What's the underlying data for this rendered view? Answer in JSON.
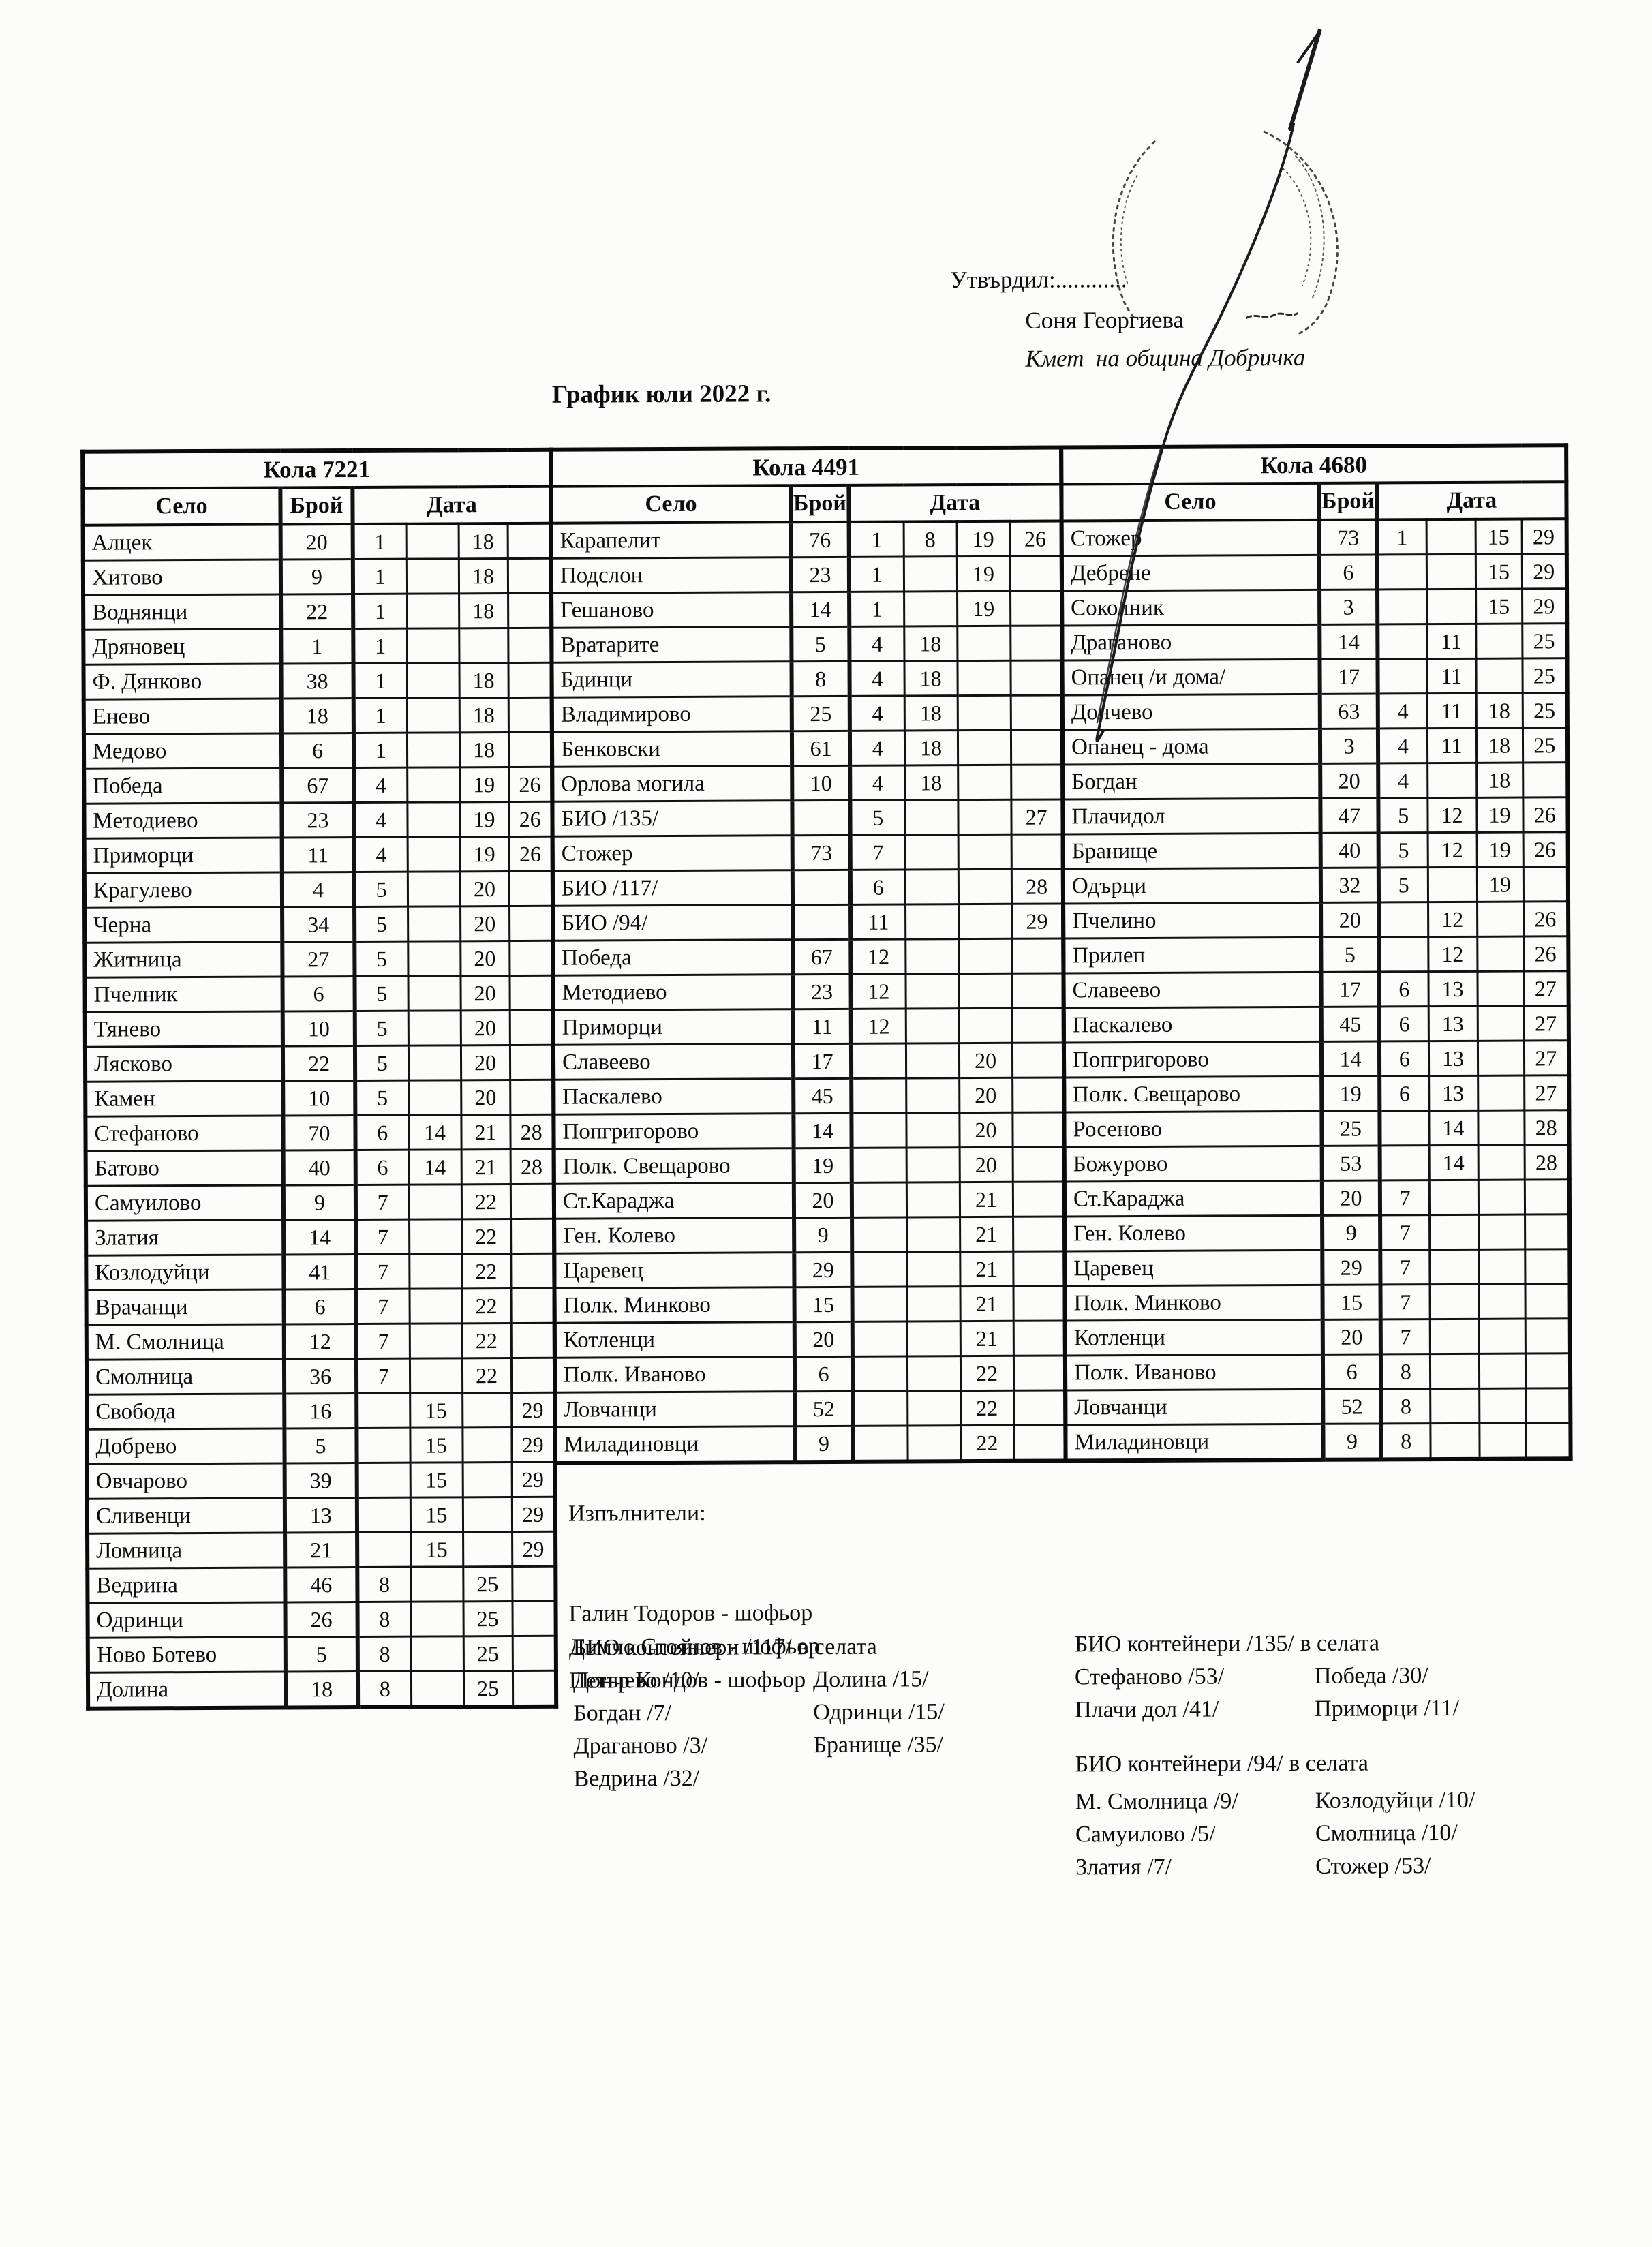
{
  "page": {
    "approve_label": "Утвърдил:............",
    "approver_name": "Соня Георгиева",
    "approver_title": "Кмет  на община Добричка",
    "title": "График юли 2022 г."
  },
  "tables": [
    {
      "car": "Кола 7221",
      "columns": {
        "village": "Село",
        "count": "Брой",
        "date": "Дата"
      },
      "rows": [
        {
          "village": "Алцек",
          "count": "20",
          "dates": [
            "1",
            "",
            "18",
            ""
          ]
        },
        {
          "village": "Хитово",
          "count": "9",
          "dates": [
            "1",
            "",
            "18",
            ""
          ]
        },
        {
          "village": "Воднянци",
          "count": "22",
          "dates": [
            "1",
            "",
            "18",
            ""
          ]
        },
        {
          "village": "Дряновец",
          "count": "1",
          "dates": [
            "1",
            "",
            "",
            ""
          ]
        },
        {
          "village": "Ф. Дянково",
          "count": "38",
          "dates": [
            "1",
            "",
            "18",
            ""
          ]
        },
        {
          "village": "Енево",
          "count": "18",
          "dates": [
            "1",
            "",
            "18",
            ""
          ]
        },
        {
          "village": "Медово",
          "count": "6",
          "dates": [
            "1",
            "",
            "18",
            ""
          ]
        },
        {
          "village": "Победа",
          "count": "67",
          "dates": [
            "4",
            "",
            "19",
            "26"
          ]
        },
        {
          "village": "Методиево",
          "count": "23",
          "dates": [
            "4",
            "",
            "19",
            "26"
          ]
        },
        {
          "village": "Приморци",
          "count": "11",
          "dates": [
            "4",
            "",
            "19",
            "26"
          ]
        },
        {
          "village": "Крагулево",
          "count": "4",
          "dates": [
            "5",
            "",
            "20",
            ""
          ]
        },
        {
          "village": "Черна",
          "count": "34",
          "dates": [
            "5",
            "",
            "20",
            ""
          ]
        },
        {
          "village": "Житница",
          "count": "27",
          "dates": [
            "5",
            "",
            "20",
            ""
          ]
        },
        {
          "village": "Пчелник",
          "count": "6",
          "dates": [
            "5",
            "",
            "20",
            ""
          ]
        },
        {
          "village": "Тянево",
          "count": "10",
          "dates": [
            "5",
            "",
            "20",
            ""
          ]
        },
        {
          "village": "Лясково",
          "count": "22",
          "dates": [
            "5",
            "",
            "20",
            ""
          ]
        },
        {
          "village": "Камен",
          "count": "10",
          "dates": [
            "5",
            "",
            "20",
            ""
          ]
        },
        {
          "village": "Стефаново",
          "count": "70",
          "dates": [
            "6",
            "14",
            "21",
            "28"
          ]
        },
        {
          "village": "Батово",
          "count": "40",
          "dates": [
            "6",
            "14",
            "21",
            "28"
          ]
        },
        {
          "village": "Самуилово",
          "count": "9",
          "dates": [
            "7",
            "",
            "22",
            ""
          ]
        },
        {
          "village": "Златия",
          "count": "14",
          "dates": [
            "7",
            "",
            "22",
            ""
          ]
        },
        {
          "village": "Козлодуйци",
          "count": "41",
          "dates": [
            "7",
            "",
            "22",
            ""
          ]
        },
        {
          "village": "Врачанци",
          "count": "6",
          "dates": [
            "7",
            "",
            "22",
            ""
          ]
        },
        {
          "village": "М. Смолница",
          "count": "12",
          "dates": [
            "7",
            "",
            "22",
            ""
          ]
        },
        {
          "village": "Смолница",
          "count": "36",
          "dates": [
            "7",
            "",
            "22",
            ""
          ]
        },
        {
          "village": "Свобода",
          "count": "16",
          "dates": [
            "",
            "15",
            "",
            "29"
          ]
        },
        {
          "village": "Добрево",
          "count": "5",
          "dates": [
            "",
            "15",
            "",
            "29"
          ]
        },
        {
          "village": "Овчарово",
          "count": "39",
          "dates": [
            "",
            "15",
            "",
            "29"
          ]
        },
        {
          "village": "Сливенци",
          "count": "13",
          "dates": [
            "",
            "15",
            "",
            "29"
          ]
        },
        {
          "village": "Ломница",
          "count": "21",
          "dates": [
            "",
            "15",
            "",
            "29"
          ]
        },
        {
          "village": "Ведрина",
          "count": "46",
          "dates": [
            "8",
            "",
            "25",
            ""
          ]
        },
        {
          "village": "Одринци",
          "count": "26",
          "dates": [
            "8",
            "",
            "25",
            ""
          ]
        },
        {
          "village": "Ново Ботево",
          "count": "5",
          "dates": [
            "8",
            "",
            "25",
            ""
          ]
        },
        {
          "village": "Долина",
          "count": "18",
          "dates": [
            "8",
            "",
            "25",
            ""
          ]
        }
      ]
    },
    {
      "car": "Кола 4491",
      "columns": {
        "village": "Село",
        "count": "Брой",
        "date": "Дата"
      },
      "rows": [
        {
          "village": "Карапелит",
          "count": "76",
          "dates": [
            "1",
            "8",
            "19",
            "26"
          ]
        },
        {
          "village": "Подслон",
          "count": "23",
          "dates": [
            "1",
            "",
            "19",
            ""
          ]
        },
        {
          "village": "Гешаново",
          "count": "14",
          "dates": [
            "1",
            "",
            "19",
            ""
          ]
        },
        {
          "village": "Вратарите",
          "count": "5",
          "dates": [
            "4",
            "18",
            "",
            ""
          ]
        },
        {
          "village": "Бдинци",
          "count": "8",
          "dates": [
            "4",
            "18",
            "",
            ""
          ]
        },
        {
          "village": "Владимирово",
          "count": "25",
          "dates": [
            "4",
            "18",
            "",
            ""
          ]
        },
        {
          "village": "Бенковски",
          "count": "61",
          "dates": [
            "4",
            "18",
            "",
            ""
          ]
        },
        {
          "village": "Орлова могила",
          "count": "10",
          "dates": [
            "4",
            "18",
            "",
            ""
          ]
        },
        {
          "village": "БИО /135/",
          "count": "",
          "dates": [
            "5",
            "",
            "",
            "27"
          ]
        },
        {
          "village": "Стожер",
          "count": "73",
          "dates": [
            "7",
            "",
            "",
            ""
          ]
        },
        {
          "village": "БИО /117/",
          "count": "",
          "dates": [
            "6",
            "",
            "",
            "28"
          ]
        },
        {
          "village": "БИО /94/",
          "count": "",
          "dates": [
            "11",
            "",
            "",
            "29"
          ]
        },
        {
          "village": "Победа",
          "count": "67",
          "dates": [
            "12",
            "",
            "",
            ""
          ]
        },
        {
          "village": "Методиево",
          "count": "23",
          "dates": [
            "12",
            "",
            "",
            ""
          ]
        },
        {
          "village": "Приморци",
          "count": "11",
          "dates": [
            "12",
            "",
            "",
            ""
          ]
        },
        {
          "village": "Славеево",
          "count": "17",
          "dates": [
            "",
            "",
            "20",
            ""
          ]
        },
        {
          "village": "Паскалево",
          "count": "45",
          "dates": [
            "",
            "",
            "20",
            ""
          ]
        },
        {
          "village": "Попгригорово",
          "count": "14",
          "dates": [
            "",
            "",
            "20",
            ""
          ]
        },
        {
          "village": "Полк. Свещарово",
          "count": "19",
          "dates": [
            "",
            "",
            "20",
            ""
          ]
        },
        {
          "village": "Ст.Караджа",
          "count": "20",
          "dates": [
            "",
            "",
            "21",
            ""
          ]
        },
        {
          "village": "Ген. Колево",
          "count": "9",
          "dates": [
            "",
            "",
            "21",
            ""
          ]
        },
        {
          "village": "Царевец",
          "count": "29",
          "dates": [
            "",
            "",
            "21",
            ""
          ]
        },
        {
          "village": "Полк. Минково",
          "count": "15",
          "dates": [
            "",
            "",
            "21",
            ""
          ]
        },
        {
          "village": "Котленци",
          "count": "20",
          "dates": [
            "",
            "",
            "21",
            ""
          ]
        },
        {
          "village": "Полк. Иваново",
          "count": "6",
          "dates": [
            "",
            "",
            "22",
            ""
          ]
        },
        {
          "village": "Ловчанци",
          "count": "52",
          "dates": [
            "",
            "",
            "22",
            ""
          ]
        },
        {
          "village": "Миладиновци",
          "count": "9",
          "dates": [
            "",
            "",
            "22",
            ""
          ]
        }
      ]
    },
    {
      "car": "Кола 4680",
      "columns": {
        "village": "Село",
        "count": "Брой",
        "date": "Дата"
      },
      "rows": [
        {
          "village": "Стожер",
          "count": "73",
          "dates": [
            "1",
            "",
            "15",
            "29"
          ]
        },
        {
          "village": "Дебрене",
          "count": "6",
          "dates": [
            "",
            "",
            "15",
            "29"
          ]
        },
        {
          "village": "Соколник",
          "count": "3",
          "dates": [
            "",
            "",
            "15",
            "29"
          ]
        },
        {
          "village": "Драганово",
          "count": "14",
          "dates": [
            "",
            "11",
            "",
            "25"
          ]
        },
        {
          "village": "Опанец /и дома/",
          "count": "17",
          "dates": [
            "",
            "11",
            "",
            "25"
          ]
        },
        {
          "village": "Дончево",
          "count": "63",
          "dates": [
            "4",
            "11",
            "18",
            "25"
          ]
        },
        {
          "village": "Опанец - дома",
          "count": "3",
          "dates": [
            "4",
            "11",
            "18",
            "25"
          ]
        },
        {
          "village": "Богдан",
          "count": "20",
          "dates": [
            "4",
            "",
            "18",
            ""
          ]
        },
        {
          "village": "Плачидол",
          "count": "47",
          "dates": [
            "5",
            "12",
            "19",
            "26"
          ]
        },
        {
          "village": "Бранище",
          "count": "40",
          "dates": [
            "5",
            "12",
            "19",
            "26"
          ]
        },
        {
          "village": "Одърци",
          "count": "32",
          "dates": [
            "5",
            "",
            "19",
            ""
          ]
        },
        {
          "village": "Пчелино",
          "count": "20",
          "dates": [
            "",
            "12",
            "",
            "26"
          ]
        },
        {
          "village": "Прилеп",
          "count": "5",
          "dates": [
            "",
            "12",
            "",
            "26"
          ]
        },
        {
          "village": "Славеево",
          "count": "17",
          "dates": [
            "6",
            "13",
            "",
            "27"
          ]
        },
        {
          "village": "Паскалево",
          "count": "45",
          "dates": [
            "6",
            "13",
            "",
            "27"
          ]
        },
        {
          "village": "Попгригорово",
          "count": "14",
          "dates": [
            "6",
            "13",
            "",
            "27"
          ]
        },
        {
          "village": "Полк. Свещарово",
          "count": "19",
          "dates": [
            "6",
            "13",
            "",
            "27"
          ]
        },
        {
          "village": "Росеново",
          "count": "25",
          "dates": [
            "",
            "14",
            "",
            "28"
          ]
        },
        {
          "village": "Божурово",
          "count": "53",
          "dates": [
            "",
            "14",
            "",
            "28"
          ]
        },
        {
          "village": "Ст.Караджа",
          "count": "20",
          "dates": [
            "7",
            "",
            "",
            ""
          ]
        },
        {
          "village": "Ген. Колево",
          "count": "9",
          "dates": [
            "7",
            "",
            "",
            ""
          ]
        },
        {
          "village": "Царевец",
          "count": "29",
          "dates": [
            "7",
            "",
            "",
            ""
          ]
        },
        {
          "village": "Полк. Минково",
          "count": "15",
          "dates": [
            "7",
            "",
            "",
            ""
          ]
        },
        {
          "village": "Котленци",
          "count": "20",
          "dates": [
            "7",
            "",
            "",
            ""
          ]
        },
        {
          "village": "Полк. Иваново",
          "count": "6",
          "dates": [
            "8",
            "",
            "",
            ""
          ]
        },
        {
          "village": "Ловчанци",
          "count": "52",
          "dates": [
            "8",
            "",
            "",
            ""
          ]
        },
        {
          "village": "Миладиновци",
          "count": "9",
          "dates": [
            "8",
            "",
            "",
            ""
          ]
        }
      ]
    }
  ],
  "executors": {
    "heading": "Изпълнители:",
    "drivers": [
      "Галин Тодоров - шофьор",
      "Димчо Стоянов - шофьор",
      "Петър Кондов - шофьор"
    ]
  },
  "bio_sections": [
    {
      "heading": "БИО контейнери /117/ в селата",
      "col_left": [
        "Дончево /10/",
        "Богдан /7/",
        "Драганово /3/",
        "Ведрина /32/"
      ],
      "col_right": [
        "Долина /15/",
        "Одринци /15/",
        "Бранище /35/"
      ]
    },
    {
      "heading": "БИО контейнери /135/ в селата",
      "col_left": [
        "Стефаново /53/",
        "Плачи дол /41/"
      ],
      "col_right": [
        "Победа /30/",
        "Приморци /11/"
      ]
    },
    {
      "heading": "БИО контейнери /94/ в селата",
      "col_left": [
        "М. Смолница /9/",
        "Самуилово /5/",
        "Златия /7/"
      ],
      "col_right": [
        "Козлодуйци /10/",
        "Смолница /10/",
        "Стожер /53/"
      ]
    }
  ]
}
